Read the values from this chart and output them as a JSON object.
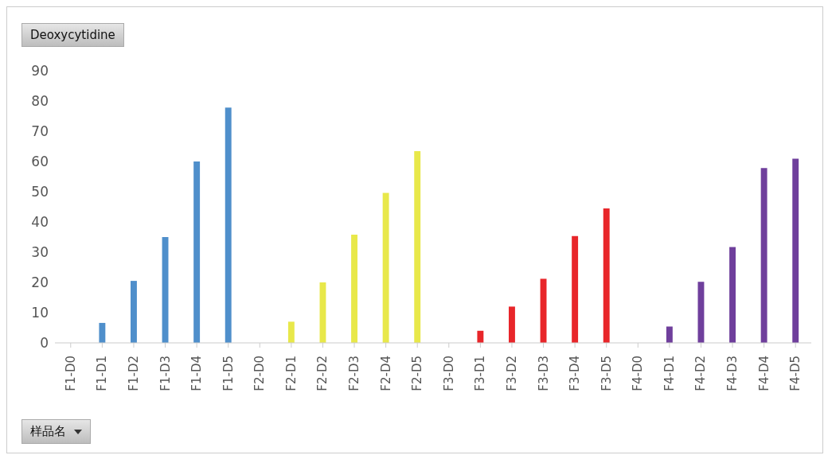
{
  "chart_data": {
    "type": "bar",
    "title": "Deoxycytidine",
    "xlabel": "样品名",
    "categories": [
      "F1-D0",
      "F1-D1",
      "F1-D2",
      "F1-D3",
      "F1-D4",
      "F1-D5",
      "F2-D0",
      "F2-D1",
      "F2-D2",
      "F2-D3",
      "F2-D4",
      "F2-D5",
      "F3-D0",
      "F3-D1",
      "F3-D2",
      "F3-D3",
      "F3-D4",
      "F3-D5",
      "F4-D0",
      "F4-D1",
      "F4-D2",
      "F4-D3",
      "F4-D4",
      "F4-D5"
    ],
    "values": [
      0,
      6.6,
      20.5,
      35,
      60,
      77.8,
      0,
      7,
      20,
      35.8,
      49.6,
      63.4,
      0,
      4,
      12,
      21.2,
      35.3,
      44.5,
      0,
      5.4,
      20.2,
      31.7,
      57.8,
      60.9
    ],
    "colors": [
      "#4f8fcb",
      "#4f8fcb",
      "#4f8fcb",
      "#4f8fcb",
      "#4f8fcb",
      "#4f8fcb",
      "#e8e84a",
      "#e8e84a",
      "#e8e84a",
      "#e8e84a",
      "#e8e84a",
      "#e8e84a",
      "#e8262a",
      "#e8262a",
      "#e8262a",
      "#e8262a",
      "#e8262a",
      "#e8262a",
      "#6f3f9c",
      "#6f3f9c",
      "#6f3f9c",
      "#6f3f9c",
      "#6f3f9c",
      "#6f3f9c"
    ],
    "ylim": [
      0,
      90
    ],
    "yticks": [
      0,
      10,
      20,
      30,
      40,
      50,
      60,
      70,
      80,
      90
    ],
    "grid": false,
    "legend": false
  }
}
